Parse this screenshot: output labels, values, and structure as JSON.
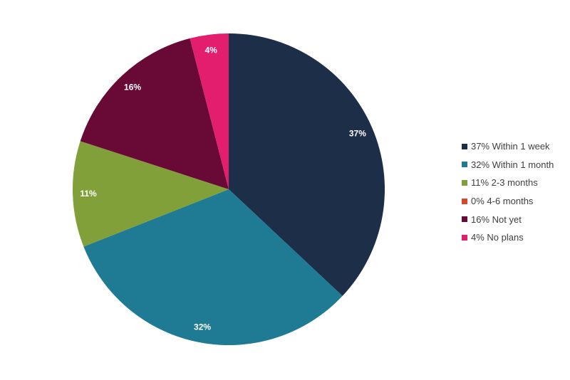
{
  "chart_data": {
    "type": "pie",
    "title": "",
    "legend_position": "right",
    "slices": [
      {
        "label": "37%",
        "legend": "37% Within 1 week",
        "value": 37,
        "color": "#1d2e48"
      },
      {
        "label": "32%",
        "legend": "32% Within 1 month",
        "value": 32,
        "color": "#1e7b93"
      },
      {
        "label": "11%",
        "legend": "11% 2-3 months",
        "value": 11,
        "color": "#82a03a"
      },
      {
        "label": "0%",
        "legend": "0% 4-6 months",
        "value": 0,
        "color": "#d4492a"
      },
      {
        "label": "16%",
        "legend": "16% Not yet",
        "value": 16,
        "color": "#690936"
      },
      {
        "label": "4%",
        "legend": "4% No plans",
        "value": 4,
        "color": "#e31e6e"
      }
    ]
  }
}
